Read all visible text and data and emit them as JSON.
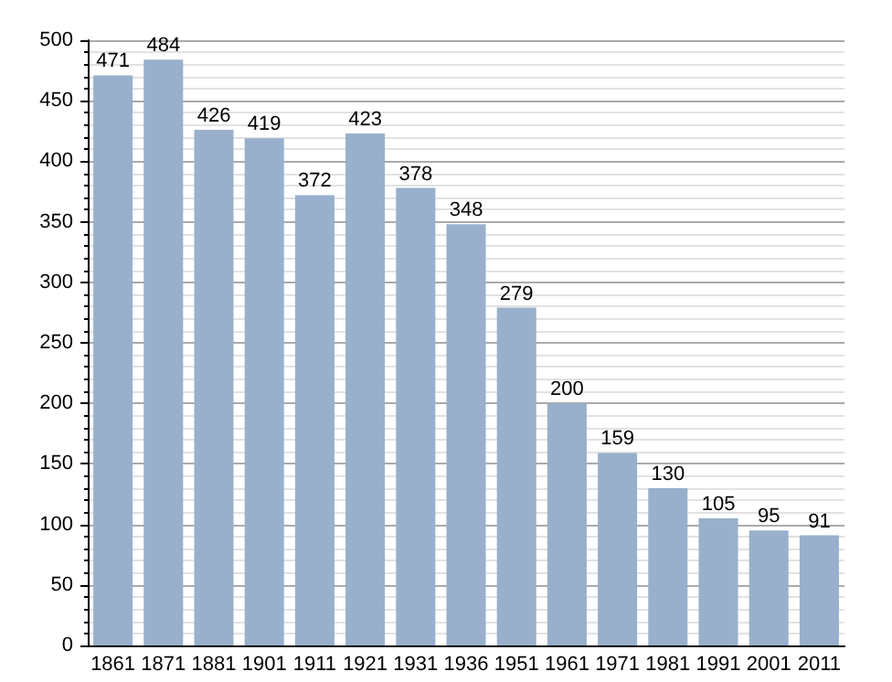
{
  "chart_data": {
    "type": "bar",
    "categories": [
      "1861",
      "1871",
      "1881",
      "1901",
      "1911",
      "1921",
      "1931",
      "1936",
      "1951",
      "1961",
      "1971",
      "1981",
      "1991",
      "2001",
      "2011"
    ],
    "values": [
      471,
      484,
      426,
      419,
      372,
      423,
      378,
      348,
      279,
      200,
      159,
      130,
      105,
      95,
      91
    ],
    "color": "#98b0cc",
    "ylim": [
      0,
      500
    ],
    "yticks": [
      0,
      50,
      100,
      150,
      200,
      250,
      300,
      350,
      400,
      450,
      500
    ],
    "grid": true,
    "data_labels": true
  }
}
